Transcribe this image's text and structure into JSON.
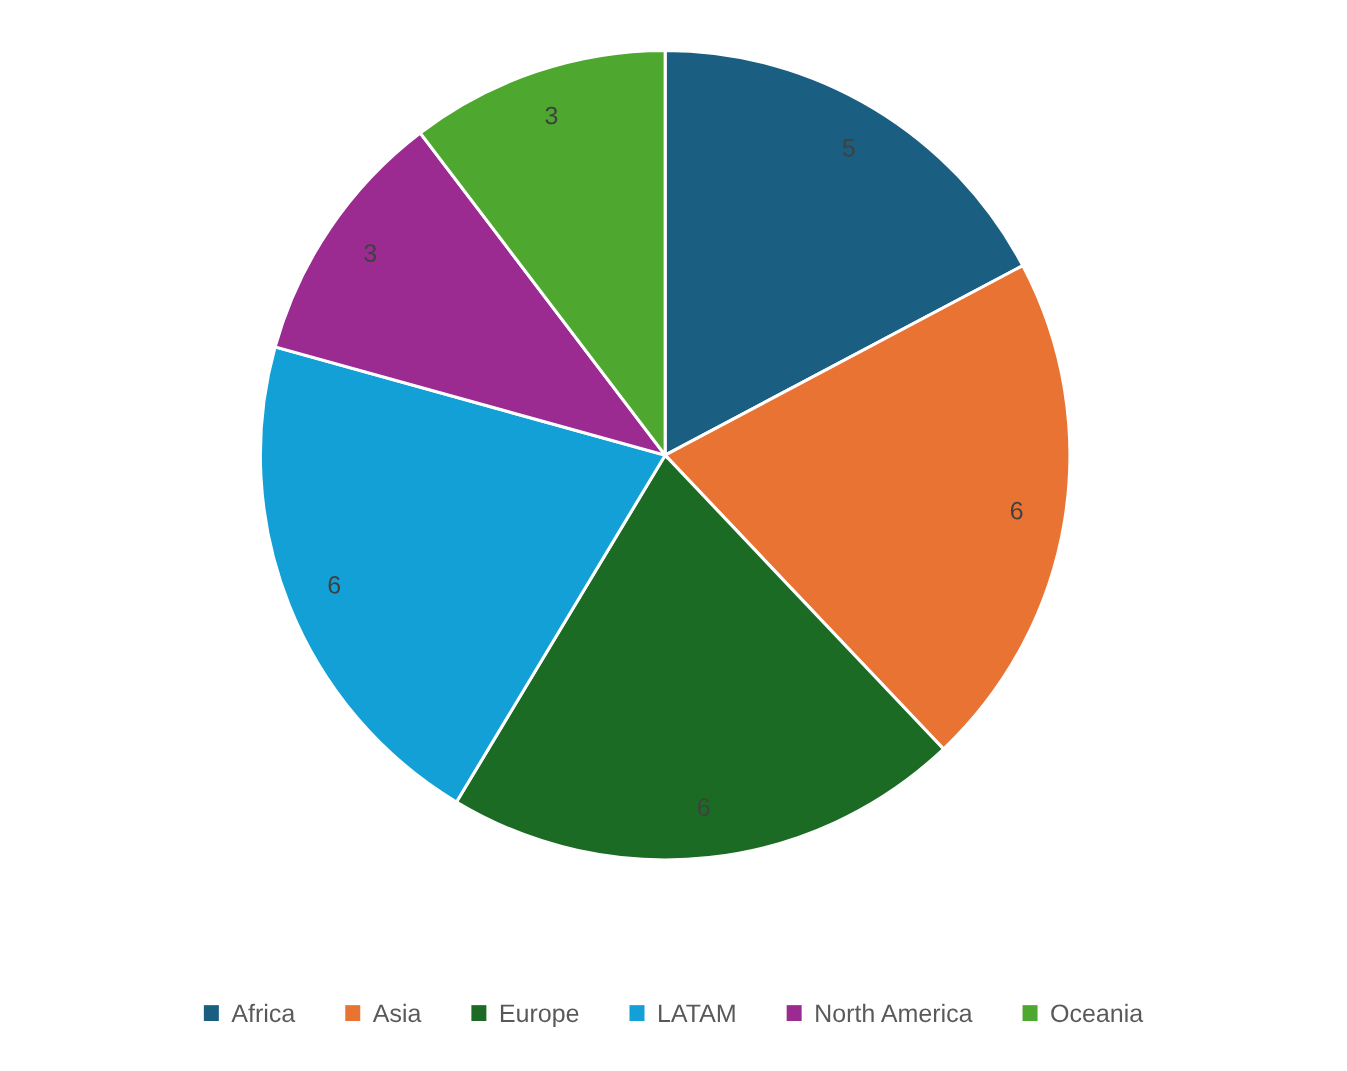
{
  "chart_data": {
    "type": "pie",
    "categories": [
      "Africa",
      "Asia",
      "Europe",
      "LATAM",
      "North America",
      "Oceania"
    ],
    "values": [
      5,
      6,
      6,
      6,
      3,
      3
    ],
    "colors": [
      "#1a5f82",
      "#e87333",
      "#1c6b24",
      "#12a0d6",
      "#9c2b91",
      "#4ea72e"
    ],
    "data_labels": true,
    "legend": "bottom"
  }
}
